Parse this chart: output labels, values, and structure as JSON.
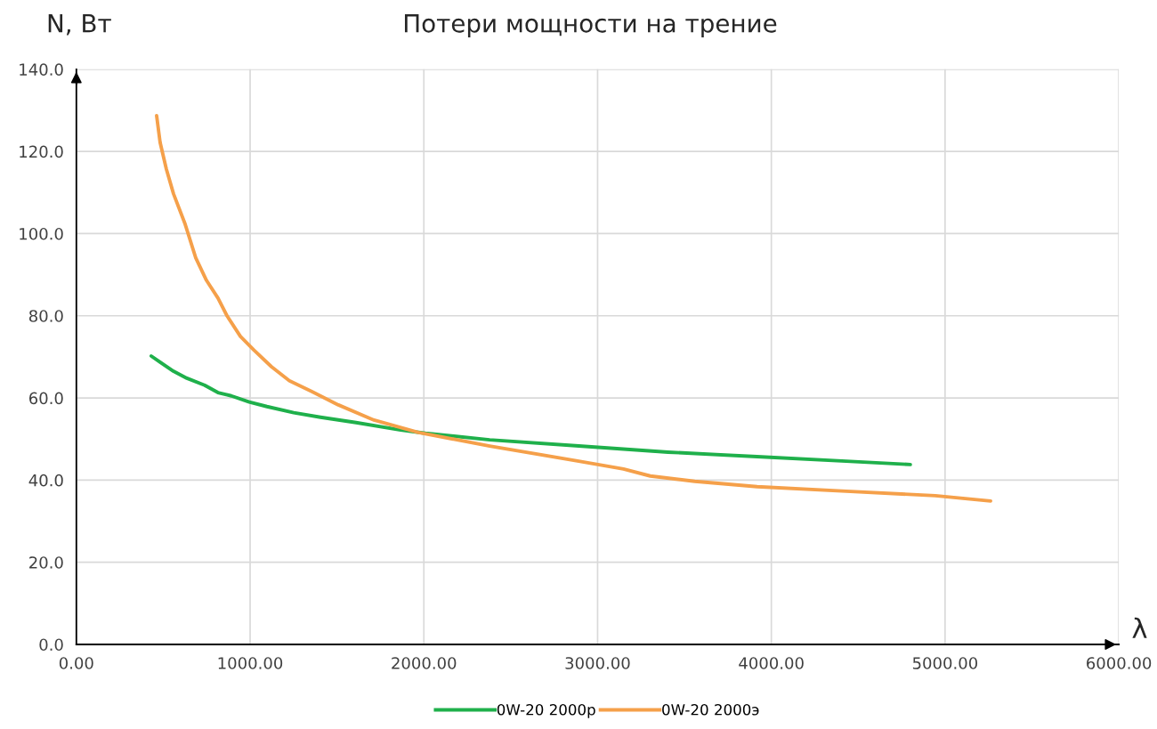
{
  "chart_data": {
    "type": "line",
    "title": "Потери мощности на трение",
    "xlabel": "λ",
    "ylabel": "N, Вт",
    "series": [
      {
        "name": "0W-20 2000р",
        "color": "#1fb04b",
        "x": [
          431,
          482,
          559,
          636,
          738,
          815,
          892,
          995,
          1097,
          1251,
          1405,
          1610,
          1867,
          2010,
          2379,
          2892,
          3405,
          3918,
          4431,
          4800
        ],
        "values": [
          70.2,
          68.7,
          66.5,
          64.8,
          63.1,
          61.3,
          60.5,
          59.0,
          57.9,
          56.4,
          55.3,
          54.0,
          52.2,
          51.4,
          49.8,
          48.3,
          46.8,
          45.7,
          44.6,
          43.8
        ]
      },
      {
        "name": "0W-20 2000э",
        "color": "#f5a04a",
        "x": [
          462,
          482,
          518,
          559,
          626,
          687,
          749,
          815,
          867,
          944,
          1021,
          1123,
          1226,
          1354,
          1508,
          1713,
          1969,
          2379,
          2892,
          3149,
          3303,
          3559,
          3918,
          4431,
          4944,
          5262
        ],
        "values": [
          128.7,
          122.2,
          115.7,
          109.7,
          102.3,
          94.1,
          88.6,
          84.3,
          80.0,
          75.0,
          71.7,
          67.6,
          64.2,
          61.6,
          58.3,
          54.6,
          51.6,
          48.3,
          44.6,
          42.7,
          41.0,
          39.7,
          38.4,
          37.3,
          36.2,
          34.9
        ]
      }
    ],
    "xlim": [
      0,
      6000
    ],
    "ylim": [
      0,
      140
    ],
    "xticks": [
      {
        "value": 0,
        "label": "0.00"
      },
      {
        "value": 1000,
        "label": "1000.00"
      },
      {
        "value": 2000,
        "label": "2000.00"
      },
      {
        "value": 3000,
        "label": "3000.00"
      },
      {
        "value": 4000,
        "label": "4000.00"
      },
      {
        "value": 5000,
        "label": "5000.00"
      },
      {
        "value": 6000,
        "label": "6000.00"
      }
    ],
    "yticks": [
      {
        "value": 0,
        "label": "0.0"
      },
      {
        "value": 20,
        "label": "20.0"
      },
      {
        "value": 40,
        "label": "40.0"
      },
      {
        "value": 60,
        "label": "60.0"
      },
      {
        "value": 80,
        "label": "80.0"
      },
      {
        "value": 100,
        "label": "100.0"
      },
      {
        "value": 120,
        "label": "120.0"
      },
      {
        "value": 140,
        "label": "140.0"
      }
    ],
    "grid": true,
    "legend": "bottom",
    "marker": "none",
    "line_style": "solid"
  }
}
